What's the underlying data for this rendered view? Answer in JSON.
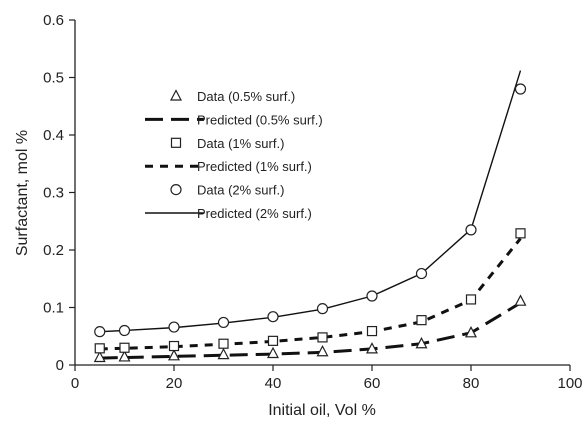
{
  "chart_data": {
    "type": "scatter",
    "title": "",
    "xlabel": "Initial oil, Vol %",
    "ylabel": "Surfactant, mol %",
    "xlim": [
      0,
      100
    ],
    "ylim": [
      0,
      0.6
    ],
    "x_ticks": [
      0,
      20,
      40,
      60,
      80,
      100
    ],
    "y_ticks": [
      0,
      0.1,
      0.2,
      0.3,
      0.4,
      0.5,
      0.6
    ],
    "x_tick_labels": [
      "0",
      "20",
      "40",
      "60",
      "80",
      "100"
    ],
    "y_tick_labels": [
      "0",
      "0.1",
      "0.2",
      "0.3",
      "0.4",
      "0.5",
      "0.6"
    ],
    "grid": false,
    "legend_position": "upper-left",
    "series": [
      {
        "name": "Data (0.5% surf.)",
        "kind": "points",
        "marker": "triangle",
        "points": [
          [
            5,
            0.013
          ],
          [
            10,
            0.014
          ],
          [
            20,
            0.016
          ],
          [
            30,
            0.018
          ],
          [
            40,
            0.02
          ],
          [
            50,
            0.023
          ],
          [
            60,
            0.028
          ],
          [
            70,
            0.037
          ],
          [
            80,
            0.056
          ],
          [
            90,
            0.111
          ]
        ]
      },
      {
        "name": "Predicted  (0.5% surf.)",
        "kind": "line",
        "dash": "long-dash",
        "points": [
          [
            5,
            0.012
          ],
          [
            10,
            0.013
          ],
          [
            20,
            0.015
          ],
          [
            30,
            0.017
          ],
          [
            40,
            0.019
          ],
          [
            50,
            0.022
          ],
          [
            60,
            0.028
          ],
          [
            70,
            0.037
          ],
          [
            80,
            0.056
          ],
          [
            90,
            0.108
          ]
        ]
      },
      {
        "name": "Data (1% surf.)",
        "kind": "points",
        "marker": "square",
        "points": [
          [
            5,
            0.029
          ],
          [
            10,
            0.03
          ],
          [
            20,
            0.033
          ],
          [
            30,
            0.037
          ],
          [
            40,
            0.042
          ],
          [
            50,
            0.048
          ],
          [
            60,
            0.059
          ],
          [
            70,
            0.078
          ],
          [
            80,
            0.114
          ],
          [
            90,
            0.229
          ]
        ]
      },
      {
        "name": "Predicted (1% surf.)",
        "kind": "line",
        "dash": "short-dash",
        "points": [
          [
            5,
            0.028
          ],
          [
            10,
            0.029
          ],
          [
            20,
            0.032
          ],
          [
            30,
            0.036
          ],
          [
            40,
            0.041
          ],
          [
            50,
            0.048
          ],
          [
            60,
            0.058
          ],
          [
            70,
            0.075
          ],
          [
            80,
            0.113
          ],
          [
            90,
            0.22
          ]
        ]
      },
      {
        "name": "Data (2% surf.)",
        "kind": "points",
        "marker": "circle",
        "points": [
          [
            5,
            0.058
          ],
          [
            10,
            0.06
          ],
          [
            20,
            0.066
          ],
          [
            30,
            0.074
          ],
          [
            40,
            0.084
          ],
          [
            50,
            0.098
          ],
          [
            60,
            0.12
          ],
          [
            70,
            0.159
          ],
          [
            80,
            0.235
          ],
          [
            90,
            0.48
          ]
        ]
      },
      {
        "name": "Predicted (2% surf.)",
        "kind": "line",
        "dash": "solid",
        "points": [
          [
            5,
            0.058
          ],
          [
            10,
            0.06
          ],
          [
            20,
            0.065
          ],
          [
            30,
            0.073
          ],
          [
            40,
            0.083
          ],
          [
            50,
            0.097
          ],
          [
            60,
            0.12
          ],
          [
            70,
            0.159
          ],
          [
            80,
            0.236
          ],
          [
            90,
            0.512
          ]
        ]
      }
    ]
  }
}
